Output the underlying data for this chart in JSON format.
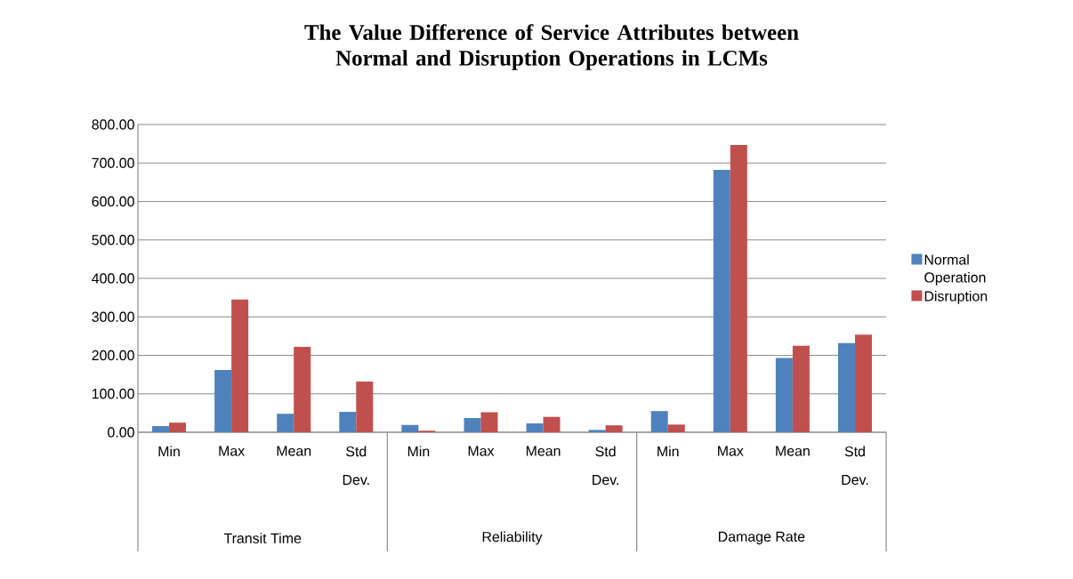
{
  "chart_data": {
    "type": "bar",
    "title": "The Value Difference of Service Attributes between Normal and Disruption Operations in LCMs",
    "categories": [
      "Min",
      "Max",
      "Mean",
      "Std Dev.",
      "Min",
      "Max",
      "Mean",
      "Std Dev.",
      "Min",
      "Max",
      "Mean",
      "Std Dev."
    ],
    "annotations": [
      "Transit Time",
      "Reliability",
      "Damage Rate"
    ],
    "series": [
      {
        "name": "Normal Operation",
        "color": "#4f81bd",
        "values": [
          16,
          162,
          48,
          53,
          19,
          37,
          23,
          6,
          55,
          682,
          193,
          232
        ]
      },
      {
        "name": "Disruption",
        "color": "#c0504d",
        "values": [
          25,
          345,
          222,
          132,
          4,
          52,
          40,
          18,
          20,
          747,
          225,
          254
        ]
      }
    ],
    "ylim": [
      0,
      800
    ],
    "yticks": [
      {
        "value": 0,
        "label": "0.00"
      },
      {
        "value": 100,
        "label": "100.00"
      },
      {
        "value": 200,
        "label": "200.00"
      },
      {
        "value": 300,
        "label": "300.00"
      },
      {
        "value": 400,
        "label": "400.00"
      },
      {
        "value": 500,
        "label": "500.00"
      },
      {
        "value": 600,
        "label": "600.00"
      },
      {
        "value": 700,
        "label": "700.00"
      },
      {
        "value": 800,
        "label": "800.00"
      }
    ],
    "grid": "y",
    "legend": "right"
  }
}
